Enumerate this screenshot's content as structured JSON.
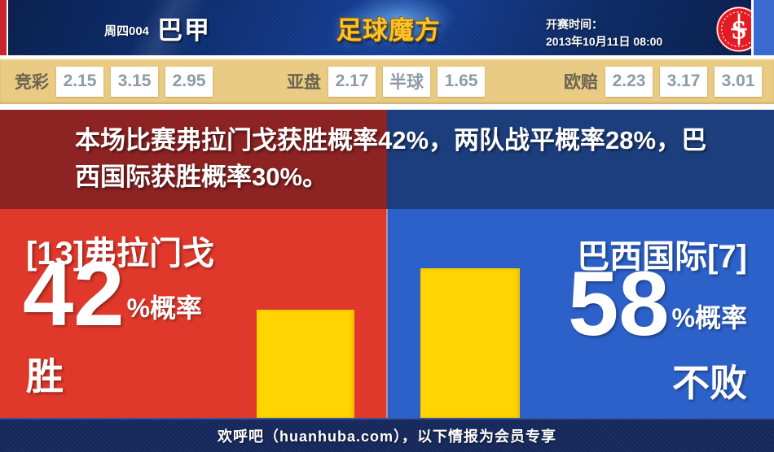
{
  "header": {
    "match_code": "周四004",
    "league": "巴甲",
    "site_logo": "足球魔方",
    "kickoff_label": "开赛时间：",
    "kickoff_time": "2013年10月11日 08:00",
    "badge_icon": "internacional-crest"
  },
  "odds": {
    "jingcai": {
      "label": "竞彩",
      "values": [
        "2.15",
        "3.15",
        "2.95"
      ]
    },
    "yapan": {
      "label": "亚盘",
      "values": [
        "2.17",
        "半球",
        "1.65"
      ]
    },
    "oupei": {
      "label": "欧赔",
      "values": [
        "2.23",
        "3.17",
        "3.01"
      ]
    }
  },
  "banner": {
    "text": "本场比赛弗拉门戈获胜概率42%，两队战平概率28%，巴西国际获胜概率30%。"
  },
  "home": {
    "name": "[13]弗拉门戈",
    "percent": "42",
    "percent_suffix": "%概率",
    "outcome": "胜"
  },
  "away": {
    "name": "巴西国际[7]",
    "percent": "58",
    "percent_suffix": "%概率",
    "outcome": "不败"
  },
  "footer": {
    "text": "欢呼吧（huanhuba.com），以下情报为会员专享"
  },
  "colors": {
    "home_panel": "#e0392b",
    "away_panel": "#2c61c9",
    "home_banner": "#8d2323",
    "away_banner": "#1d3e7d",
    "bar_fill": "#ffd400",
    "odds_bar_bg": "#e9cb83",
    "header_bg": "#0d2f74",
    "footer_bg": "#15275a",
    "logo_gold": "#fcc32a",
    "accent_left": "#c9252c",
    "accent_right": "#3a6ace"
  },
  "chart_data": {
    "type": "bar",
    "categories": [
      "弗拉门戈 胜",
      "巴西国际 不败"
    ],
    "values": [
      42,
      58
    ],
    "title": "获胜概率",
    "ylabel": "概率 %",
    "ylim": [
      0,
      100
    ],
    "annotations": {
      "home_win_pct": 42,
      "draw_pct": 28,
      "away_win_pct": 30,
      "away_unbeaten_pct": 58
    },
    "legend_position": "none",
    "grid": false
  }
}
